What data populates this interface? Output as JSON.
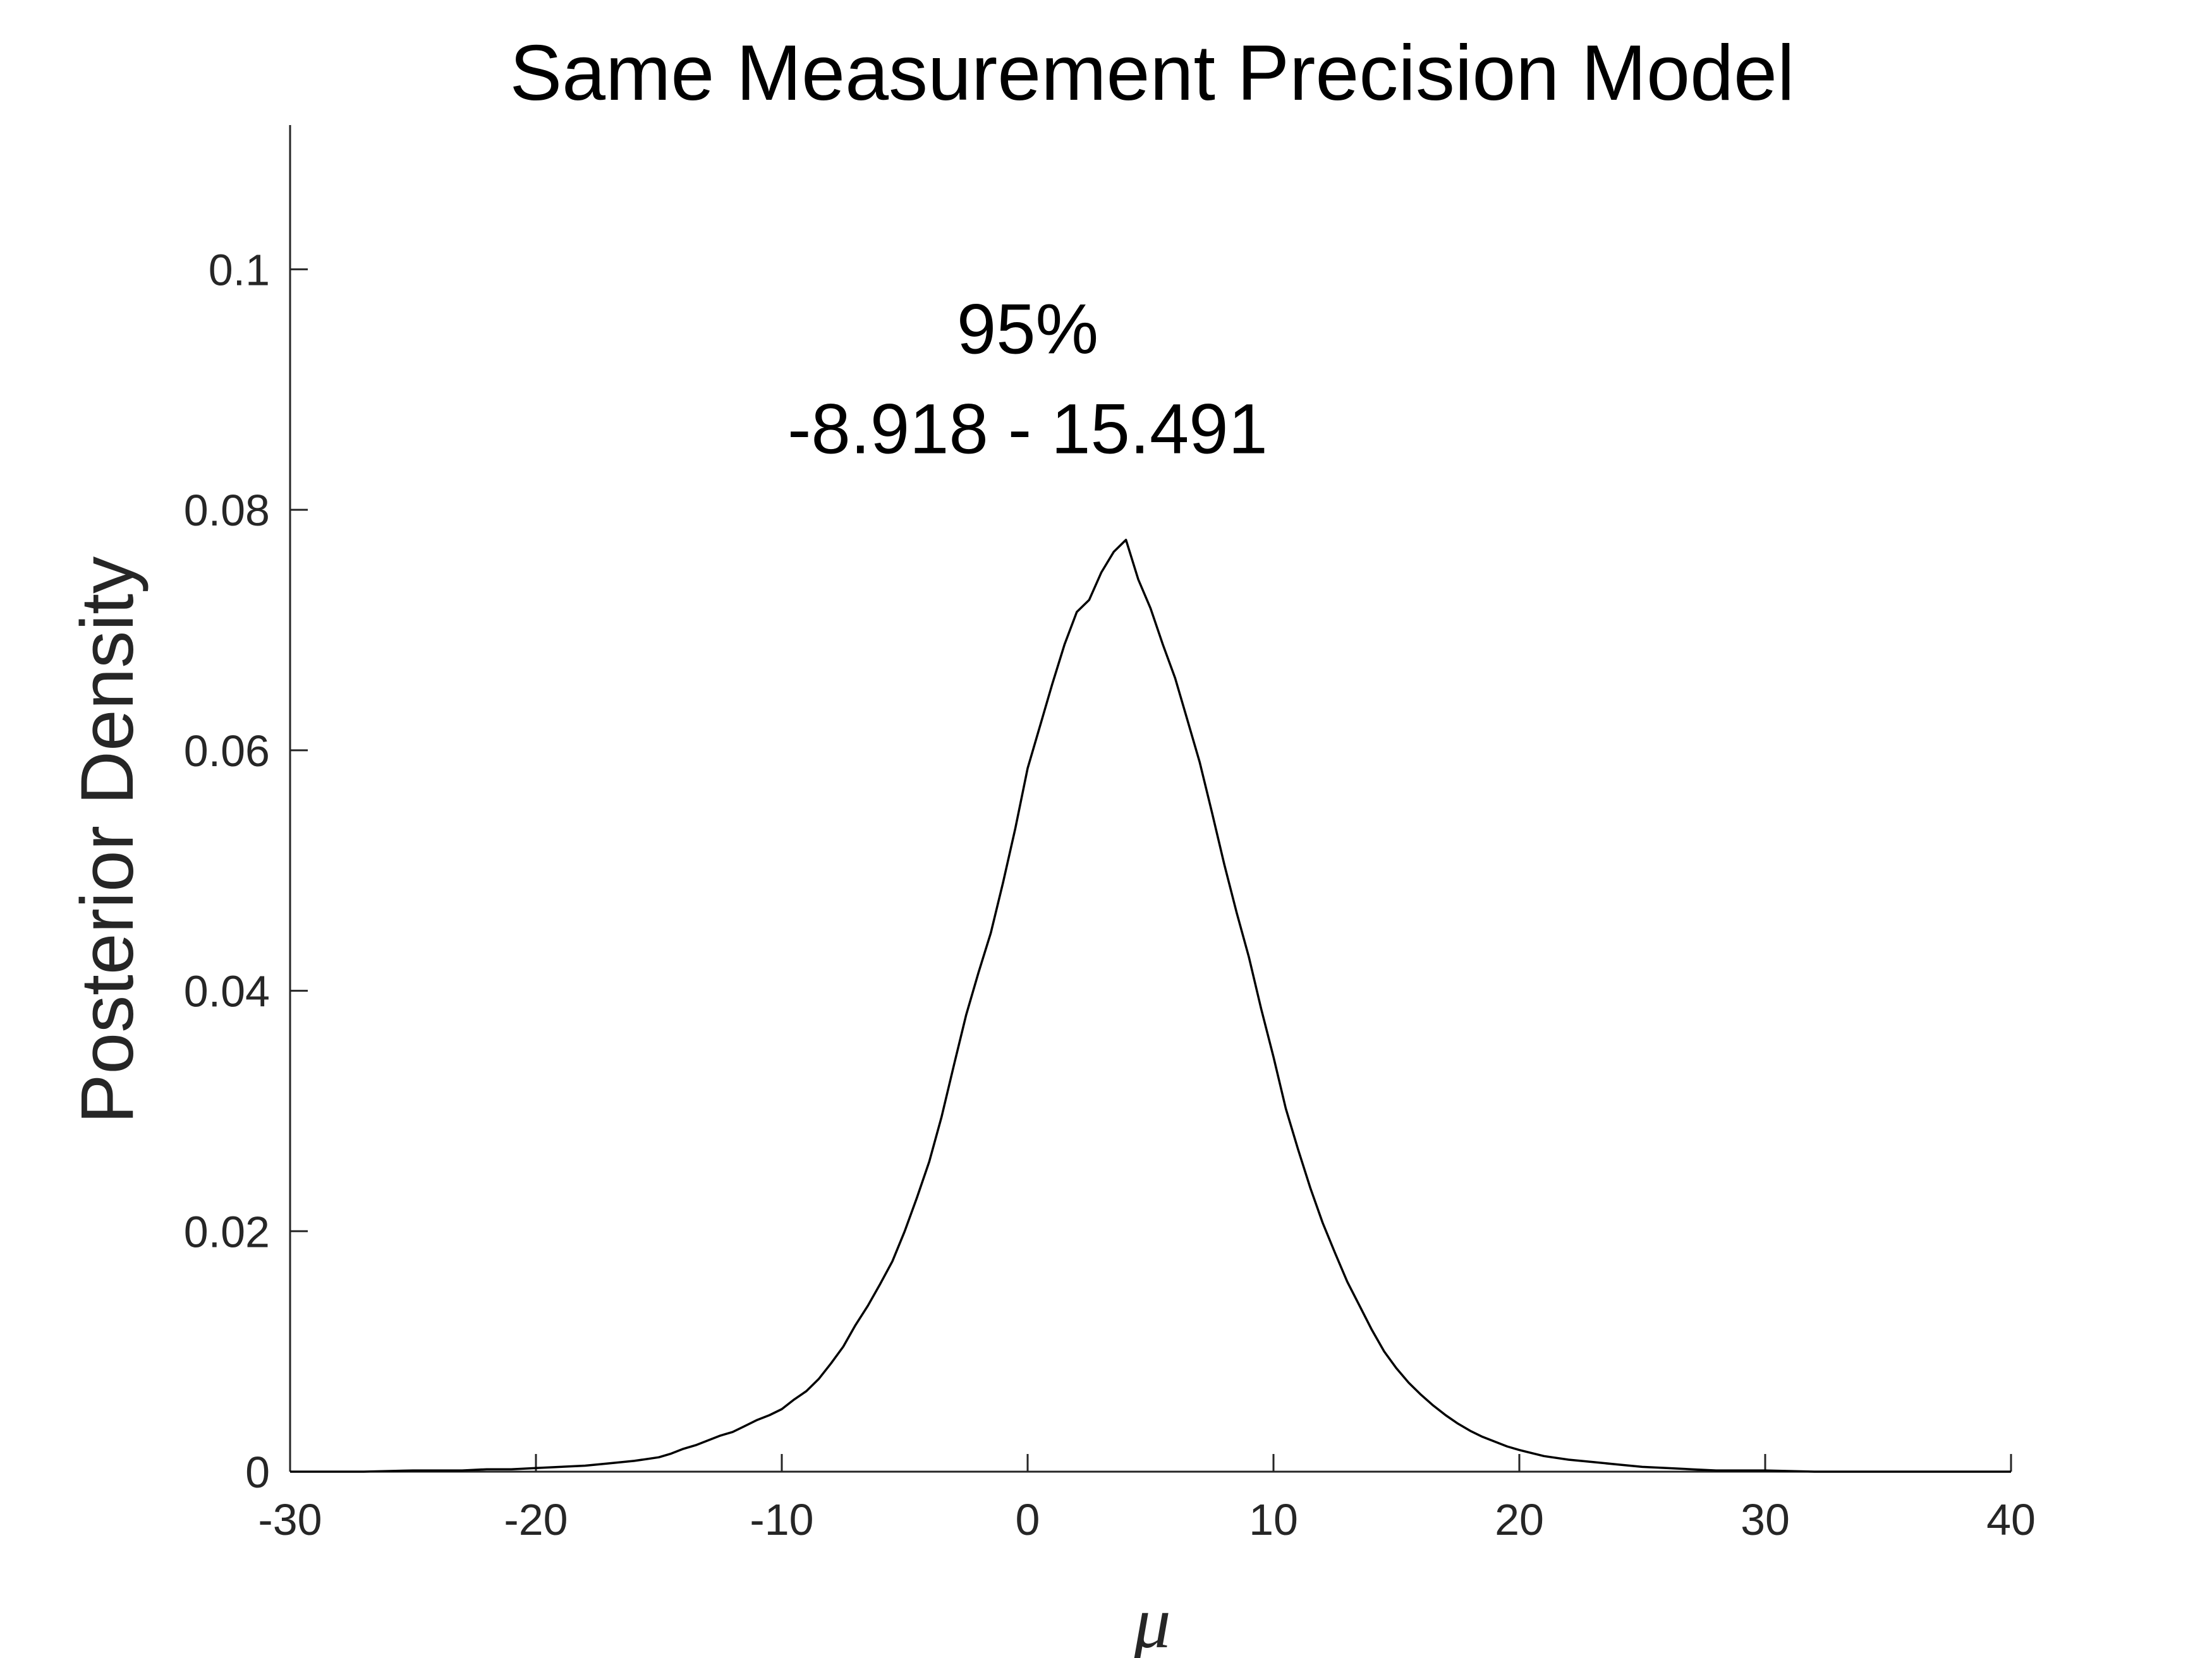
{
  "chart_data": {
    "type": "line",
    "title": "Same Measurement Precision Model",
    "xlabel": "μ",
    "ylabel": "Posterior Density",
    "xlim": [
      -30,
      40
    ],
    "ylim": [
      0,
      0.112
    ],
    "grid": false,
    "legend": "none",
    "x_ticks": [
      -30,
      -20,
      -10,
      0,
      10,
      20,
      30,
      40
    ],
    "x_tick_labels": [
      "-30",
      "-20",
      "-10",
      "0",
      "10",
      "20",
      "30",
      "40"
    ],
    "y_ticks": [
      0,
      0.02,
      0.04,
      0.06,
      0.08,
      0.1
    ],
    "y_tick_labels": [
      "0",
      "0.02",
      "0.04",
      "0.06",
      "0.08",
      "0.1"
    ],
    "annotation": {
      "line1": "95%",
      "line2": "-8.918 - 15.491",
      "x": 0,
      "y": 0.093
    },
    "series": [
      {
        "color": "#000000",
        "x": [
          -30,
          -27,
          -25,
          -24,
          -23,
          -22,
          -21,
          -20,
          -19,
          -18,
          -17,
          -16,
          -15,
          -14.5,
          -14,
          -13.5,
          -13,
          -12.5,
          -12,
          -11.5,
          -11,
          -10.5,
          -10,
          -9.5,
          -9,
          -8.5,
          -8,
          -7.5,
          -7,
          -6.5,
          -6,
          -5.5,
          -5,
          -4.5,
          -4,
          -3.5,
          -3,
          -2.5,
          -2,
          -1.5,
          -1,
          -0.5,
          0,
          0.5,
          1,
          1.5,
          2,
          2.5,
          3,
          3.5,
          4,
          4.5,
          5,
          5.5,
          6,
          6.5,
          7,
          7.5,
          8,
          8.5,
          9,
          9.5,
          10,
          10.5,
          11,
          11.5,
          12,
          12.5,
          13,
          13.5,
          14,
          14.5,
          15,
          15.5,
          16,
          16.5,
          17,
          17.5,
          18,
          18.5,
          19,
          19.5,
          20,
          21,
          22,
          23,
          24,
          25,
          26,
          27,
          28,
          30,
          32,
          35,
          40
        ],
        "y": [
          0,
          0,
          0.0001,
          0.0001,
          0.0001,
          0.0002,
          0.0002,
          0.0003,
          0.0004,
          0.0005,
          0.0007,
          0.0009,
          0.0012,
          0.0015,
          0.0019,
          0.0022,
          0.0026,
          0.003,
          0.0033,
          0.0038,
          0.0043,
          0.0047,
          0.0052,
          0.006,
          0.0067,
          0.0077,
          0.009,
          0.0104,
          0.0122,
          0.0138,
          0.0156,
          0.0175,
          0.02,
          0.0228,
          0.0258,
          0.0295,
          0.0338,
          0.038,
          0.0415,
          0.0448,
          0.049,
          0.0535,
          0.0585,
          0.062,
          0.0655,
          0.0688,
          0.0715,
          0.0725,
          0.0748,
          0.0765,
          0.0775,
          0.0742,
          0.0718,
          0.0688,
          0.066,
          0.0625,
          0.059,
          0.0548,
          0.0505,
          0.0465,
          0.0428,
          0.0385,
          0.0345,
          0.0302,
          0.0268,
          0.0236,
          0.0207,
          0.0182,
          0.0158,
          0.0138,
          0.0118,
          0.01,
          0.0086,
          0.0074,
          0.0064,
          0.0055,
          0.0047,
          0.004,
          0.0034,
          0.0029,
          0.0025,
          0.0021,
          0.0018,
          0.0013,
          0.001,
          0.0008,
          0.0006,
          0.0004,
          0.0003,
          0.0002,
          0.0001,
          0.0001,
          0,
          0,
          0
        ]
      }
    ]
  }
}
